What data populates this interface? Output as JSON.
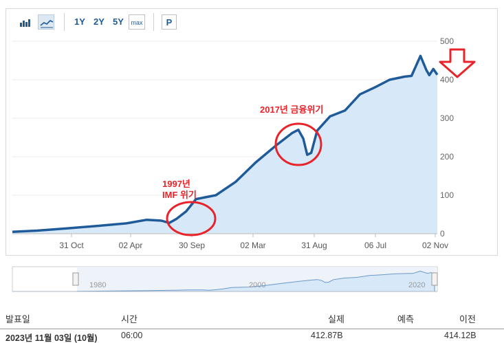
{
  "toolbar": {
    "range_buttons": [
      "1Y",
      "2Y",
      "5Y"
    ],
    "max_label": "max",
    "p_label": "P",
    "icons": [
      "bar-chart-icon",
      "line-chart-icon"
    ]
  },
  "chart_data": {
    "type": "area",
    "x_tick_labels": [
      "31 Oct",
      "02 Apr",
      "30 Sep",
      "02 Mar",
      "31 Aug",
      "06 Jul",
      "02 Nov"
    ],
    "y_ticks": [
      0,
      100,
      200,
      300,
      400,
      500
    ],
    "ylim": [
      0,
      500
    ],
    "y_axis_side": "right",
    "series": [
      {
        "values": [
          [
            1981.5,
            5
          ],
          [
            1984,
            8
          ],
          [
            1987,
            14
          ],
          [
            1990,
            20
          ],
          [
            1993,
            27
          ],
          [
            1995,
            36
          ],
          [
            1996.5,
            34
          ],
          [
            1997.3,
            28
          ],
          [
            1998,
            38
          ],
          [
            1999,
            58
          ],
          [
            2000,
            90
          ],
          [
            2002,
            100
          ],
          [
            2004,
            135
          ],
          [
            2006,
            185
          ],
          [
            2008,
            228
          ],
          [
            2009.7,
            262
          ],
          [
            2010.3,
            270
          ],
          [
            2010.8,
            247
          ],
          [
            2011.2,
            205
          ],
          [
            2011.6,
            210
          ],
          [
            2012.2,
            268
          ],
          [
            2013.5,
            305
          ],
          [
            2015,
            320
          ],
          [
            2016.5,
            362
          ],
          [
            2018,
            380
          ],
          [
            2019.5,
            400
          ],
          [
            2021,
            408
          ],
          [
            2021.7,
            410
          ],
          [
            2022.6,
            462
          ],
          [
            2023.2,
            425
          ],
          [
            2023.5,
            412
          ],
          [
            2023.9,
            428
          ],
          [
            2024.3,
            413
          ]
        ]
      }
    ],
    "annotations": [
      {
        "label": "1997년",
        "label2": "IMF 위기"
      },
      {
        "label": "2017년  금융위기"
      }
    ],
    "navigator_labels": [
      "1980",
      "2000",
      "2020"
    ],
    "colors": {
      "line": "#1f5b99",
      "area": "#d7e8f9",
      "annotation": "#e8232a",
      "arrow": "#e8232a"
    }
  },
  "table": {
    "headers": [
      "발표일",
      "시간",
      "실제",
      "예측",
      "이전"
    ],
    "rows": [
      {
        "date": "2023년 11월 03일 (10월)",
        "time": "06:00",
        "actual": "412.87B",
        "forecast": "",
        "previous": "414.12B"
      }
    ]
  }
}
